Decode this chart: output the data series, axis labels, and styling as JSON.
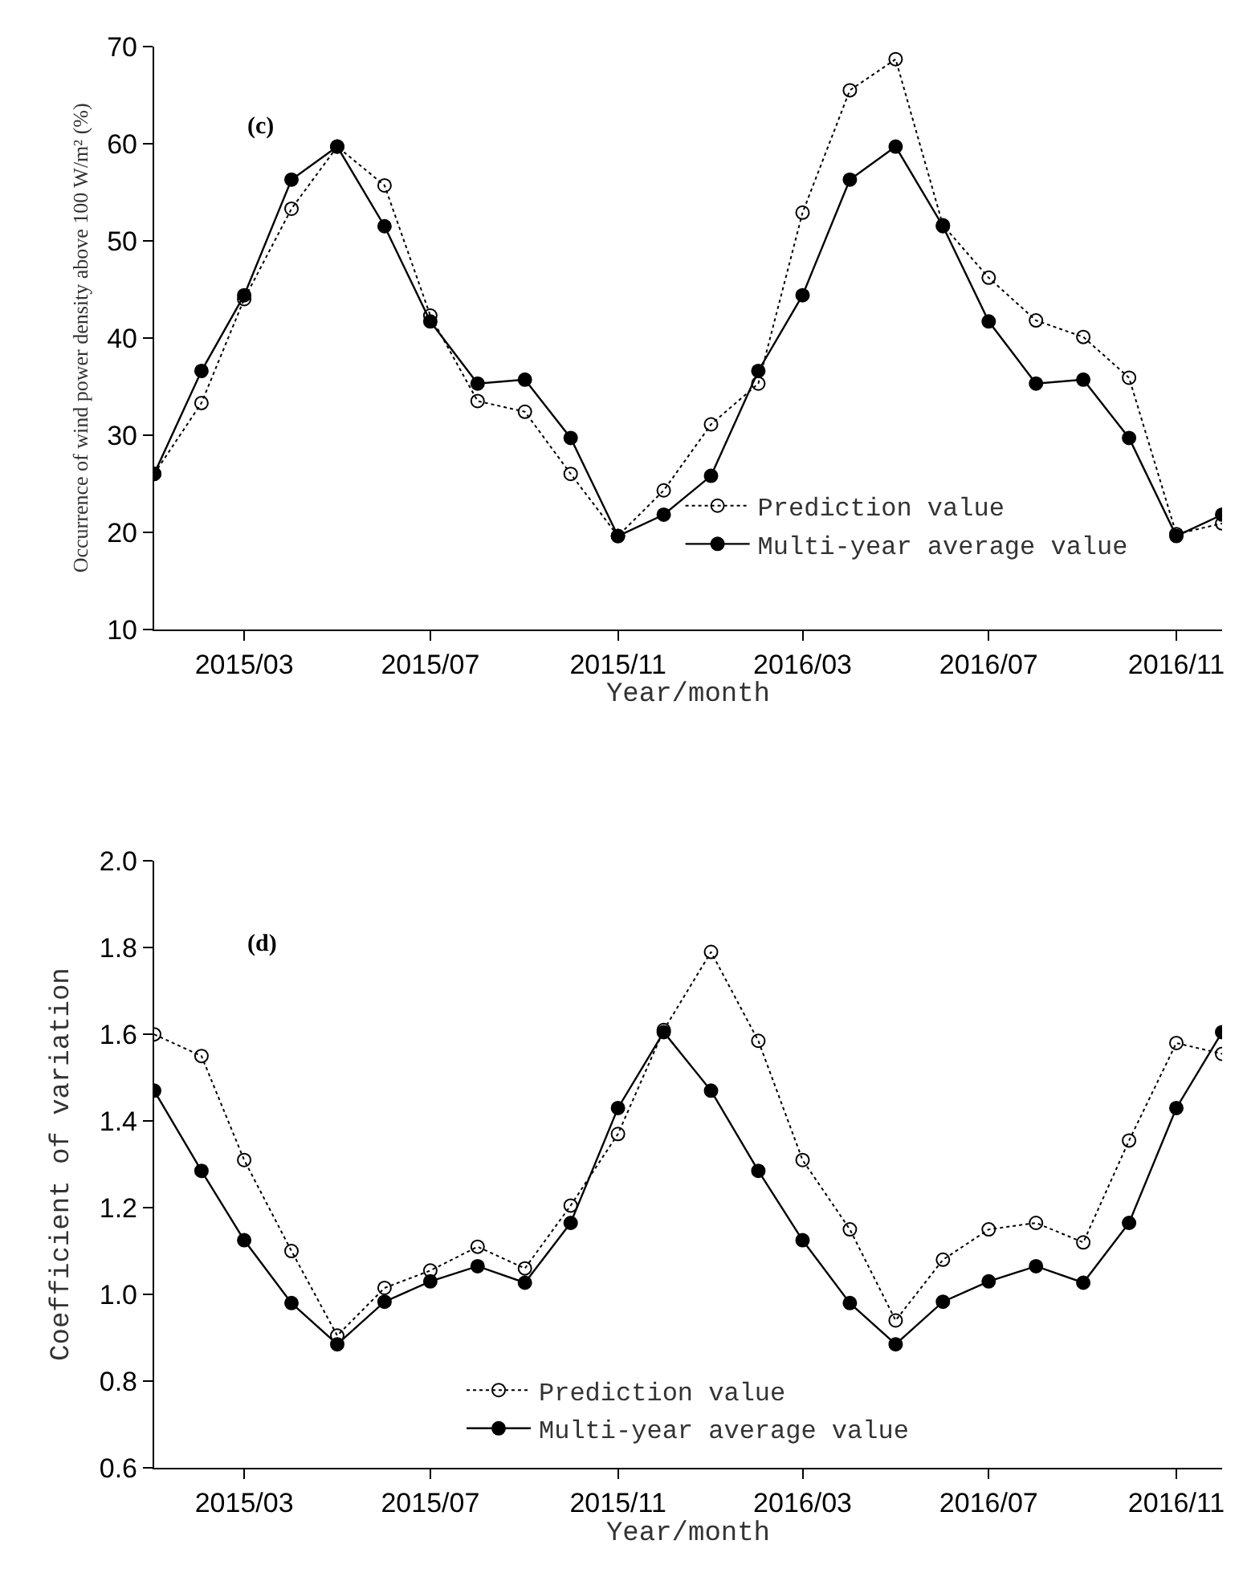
{
  "chart_data": [
    {
      "type": "line",
      "annotations": [
        "(c)"
      ],
      "xlabel": "Year/month",
      "ylabel": "Occurrence of wind power density above 100 W/m² (%)",
      "x": [
        "2015-01",
        "2015-02",
        "2015-03",
        "2015-04",
        "2015-05",
        "2015-06",
        "2015-07",
        "2015-08",
        "2015-09",
        "2015-10",
        "2015-11",
        "2015-12",
        "2016-01",
        "2016-02",
        "2016-03",
        "2016-04",
        "2016-05",
        "2016-06",
        "2016-07",
        "2016-08",
        "2016-09",
        "2016-10",
        "2016-11",
        "2016-12"
      ],
      "series": [
        {
          "name": "Prediction value",
          "color": "#000000",
          "line_style": "dotted",
          "values": [
            26,
            33.3,
            44,
            53.3,
            59.7,
            55.7,
            42.3,
            33.5,
            32.4,
            26,
            19.6,
            24.3,
            31.1,
            35.3,
            52.9,
            65.5,
            68.7,
            51.6,
            46.2,
            41.8,
            40.1,
            35.9,
            19.8,
            20.9
          ]
        },
        {
          "name": "Multi-year average value",
          "color": "#000000",
          "line_style": "solid",
          "values": [
            26,
            36.6,
            44.4,
            56.3,
            59.7,
            51.5,
            41.7,
            35.3,
            35.7,
            29.7,
            19.6,
            21.8,
            25.8,
            36.6,
            44.4,
            56.3,
            59.7,
            51.5,
            41.7,
            35.3,
            35.7,
            29.7,
            19.6,
            21.8
          ]
        }
      ],
      "marker": "circle",
      "legend": "bottom right",
      "xlim": [
        "2015-01",
        "2016-12"
      ],
      "xticks": [
        {
          "value": "2015-03",
          "label": "2015/03"
        },
        {
          "value": "2015-07",
          "label": "2015/07"
        },
        {
          "value": "2015-11",
          "label": "2015/11"
        },
        {
          "value": "2016-03",
          "label": "2016/03"
        },
        {
          "value": "2016-07",
          "label": "2016/07"
        },
        {
          "value": "2016-11",
          "label": "2016/11"
        }
      ],
      "ylim": [
        10,
        70
      ],
      "yticks": [
        10,
        20,
        30,
        40,
        50,
        60,
        70
      ]
    },
    {
      "type": "line",
      "annotations": [
        "(d)"
      ],
      "xlabel": "Year/month",
      "ylabel": "Coefficient of variation",
      "x": [
        "2015-01",
        "2015-02",
        "2015-03",
        "2015-04",
        "2015-05",
        "2015-06",
        "2015-07",
        "2015-08",
        "2015-09",
        "2015-10",
        "2015-11",
        "2015-12",
        "2016-01",
        "2016-02",
        "2016-03",
        "2016-04",
        "2016-05",
        "2016-06",
        "2016-07",
        "2016-08",
        "2016-09",
        "2016-10",
        "2016-11",
        "2016-12"
      ],
      "series": [
        {
          "name": "Prediction value",
          "color": "#000000",
          "line_style": "dotted",
          "values": [
            1.6,
            1.55,
            1.31,
            1.1,
            0.905,
            1.015,
            1.055,
            1.11,
            1.06,
            1.205,
            1.37,
            1.61,
            1.79,
            1.585,
            1.31,
            1.15,
            0.94,
            1.08,
            1.15,
            1.165,
            1.12,
            1.355,
            1.58,
            1.555
          ]
        },
        {
          "name": "Multi-year average value",
          "color": "#000000",
          "line_style": "solid",
          "values": [
            1.47,
            1.285,
            1.125,
            0.98,
            0.885,
            0.983,
            1.03,
            1.065,
            1.027,
            1.165,
            1.43,
            1.605,
            1.47,
            1.285,
            1.125,
            0.98,
            0.885,
            0.983,
            1.03,
            1.065,
            1.027,
            1.165,
            1.43,
            1.605
          ]
        }
      ],
      "marker": "circle",
      "legend": "bottom",
      "xlim": [
        "2015-01",
        "2016-12"
      ],
      "xticks": [
        {
          "value": "2015-03",
          "label": "2015/03"
        },
        {
          "value": "2015-07",
          "label": "2015/07"
        },
        {
          "value": "2015-11",
          "label": "2015/11"
        },
        {
          "value": "2016-03",
          "label": "2016/03"
        },
        {
          "value": "2016-07",
          "label": "2016/07"
        },
        {
          "value": "2016-11",
          "label": "2016/11"
        }
      ],
      "ylim": [
        0.6,
        2.0
      ],
      "yticks": [
        {
          "value": 0.6,
          "label": "0.6"
        },
        {
          "value": 0.8,
          "label": "0.8"
        },
        {
          "value": 1.0,
          "label": "1.0"
        },
        {
          "value": 1.2,
          "label": "1.2"
        },
        {
          "value": 1.4,
          "label": "1.4"
        },
        {
          "value": 1.6,
          "label": "1.6"
        },
        {
          "value": 1.8,
          "label": "1.8"
        },
        {
          "value": 2.0,
          "label": "2.0"
        }
      ]
    }
  ]
}
